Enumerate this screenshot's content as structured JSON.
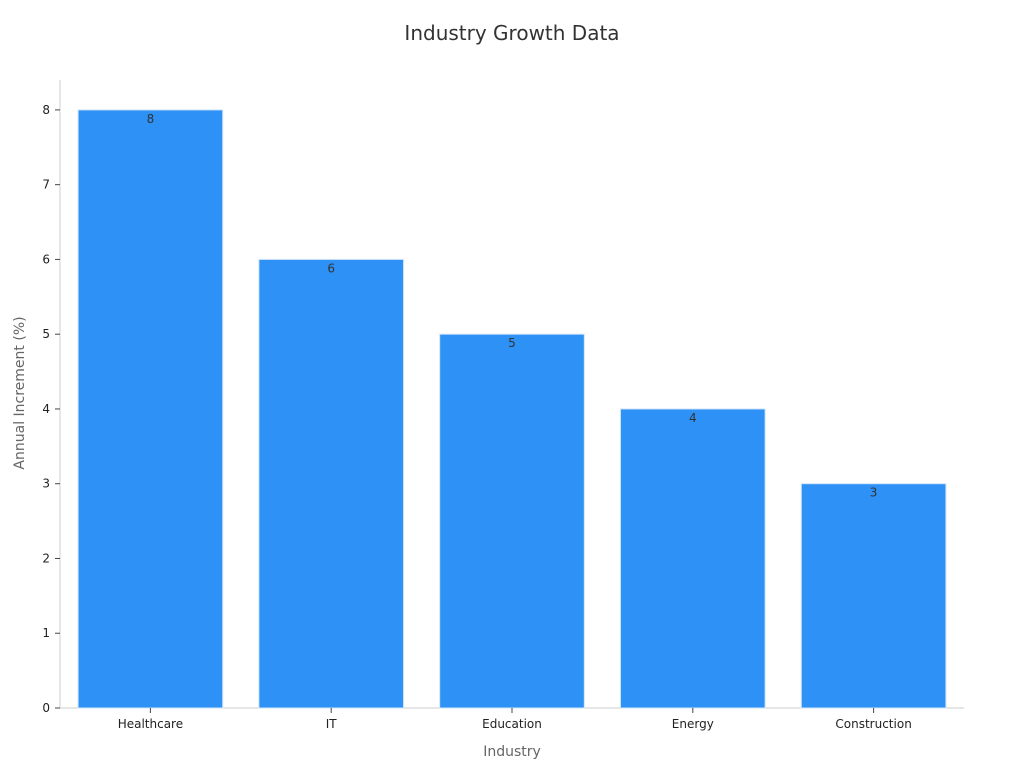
{
  "chart_data": {
    "type": "bar",
    "title": "Industry Growth Data",
    "xlabel": "Industry",
    "ylabel": "Annual Increment (%)",
    "categories": [
      "Healthcare",
      "IT",
      "Education",
      "Energy",
      "Construction"
    ],
    "values": [
      8,
      6,
      5,
      4,
      3
    ],
    "ylim": [
      0,
      8.4
    ],
    "yticks": [
      0,
      1,
      2,
      3,
      4,
      5,
      6,
      7,
      8
    ],
    "grid": false,
    "legend": "none",
    "bar_color": "#2e91f5",
    "axis_color": "#cccccc",
    "tick_color": "#444444"
  }
}
